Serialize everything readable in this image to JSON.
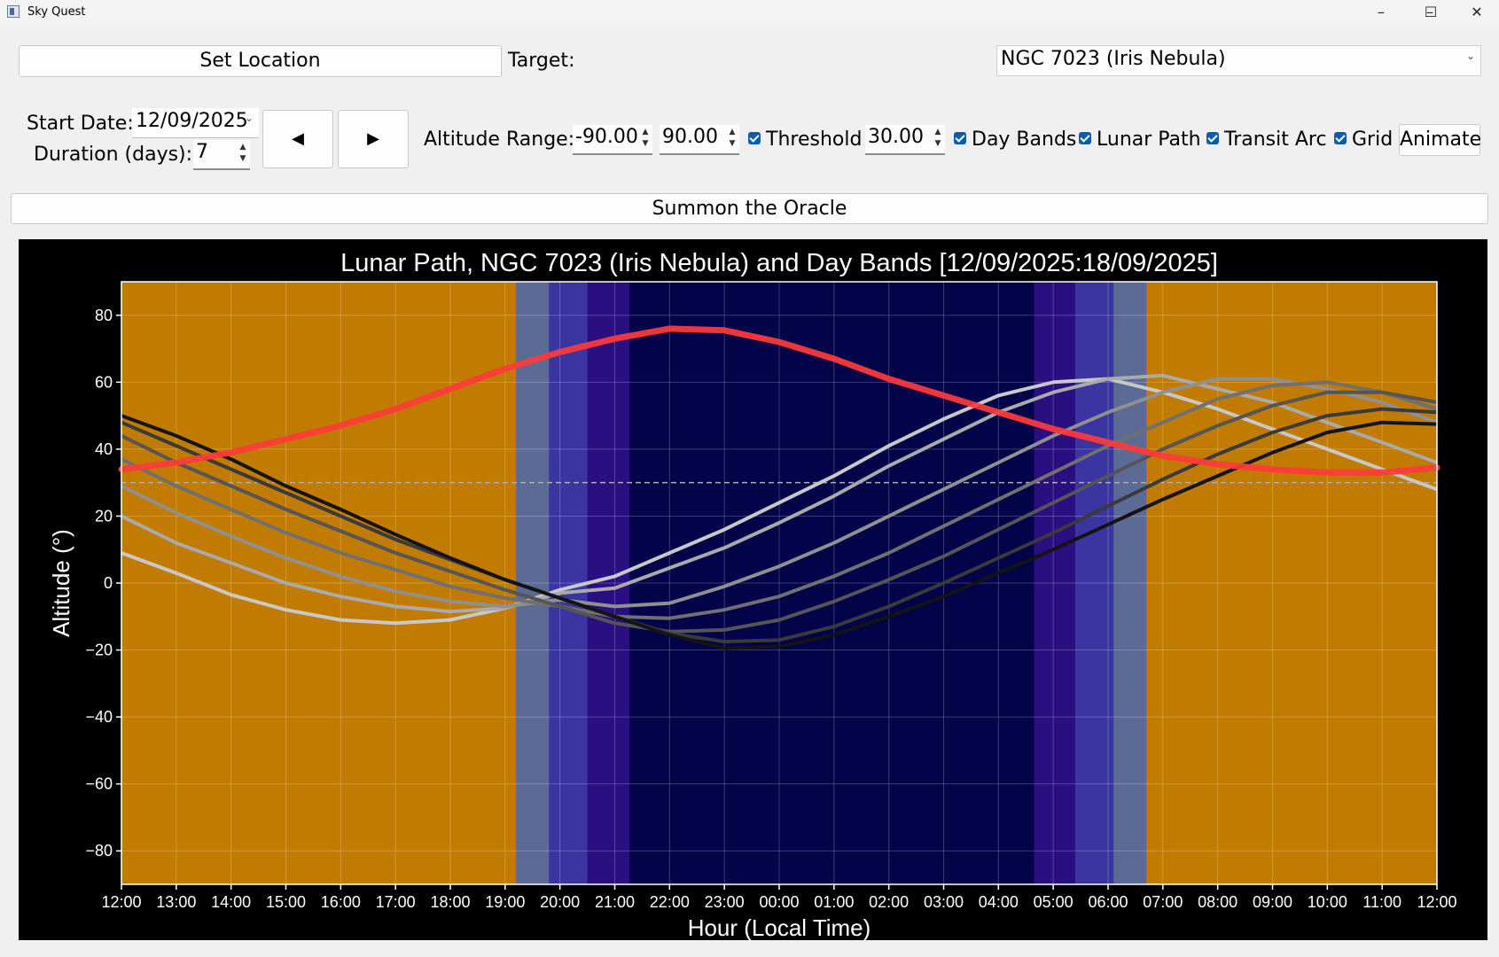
{
  "window": {
    "title": "Sky Quest",
    "minimize": "–",
    "maximize": "☐",
    "close": "✕"
  },
  "controls": {
    "set_location": "Set Location",
    "target_label": "Target:",
    "target_value": "NGC 7023 (Iris Nebula)",
    "start_date_label": "Start Date:",
    "start_date_value": "12/09/2025",
    "duration_label": "Duration (days):",
    "duration_value": "7",
    "prev": "◀",
    "next": "▶",
    "altitude_range_label": "Altitude Range:",
    "alt_min": "-90.00",
    "alt_max": "90.00",
    "threshold_label": "Threshold",
    "threshold_value": "30.00",
    "day_bands_label": "Day Bands",
    "lunar_path_label": "Lunar Path",
    "transit_arc_label": "Transit Arc",
    "grid_label": "Grid",
    "animate": "Animate",
    "summon": "Summon the Oracle"
  },
  "chart_data": {
    "type": "line",
    "title": "Lunar Path, NGC 7023 (Iris Nebula) and Day Bands [12/09/2025:18/09/2025]",
    "xlabel": "Hour (Local Time)",
    "ylabel": "Altitude (°)",
    "x_tick_labels": [
      "12:00",
      "13:00",
      "14:00",
      "15:00",
      "16:00",
      "17:00",
      "18:00",
      "19:00",
      "20:00",
      "21:00",
      "22:00",
      "23:00",
      "00:00",
      "01:00",
      "02:00",
      "03:00",
      "04:00",
      "05:00",
      "06:00",
      "07:00",
      "08:00",
      "09:00",
      "10:00",
      "11:00",
      "12:00"
    ],
    "y_ticks": [
      -80,
      -60,
      -40,
      -20,
      0,
      20,
      40,
      60,
      80
    ],
    "ylim": [
      -90,
      90
    ],
    "xlim": [
      0,
      24
    ],
    "grid": true,
    "threshold": 30,
    "colors": {
      "day": "#c07b00",
      "civil": "#5b6b96",
      "nautical": "#3a35a0",
      "astronomical": "#2a0f80",
      "night": "#03034a",
      "lunar": "#ff3b3b"
    },
    "day_bands": [
      {
        "type": "day",
        "from": 0,
        "to": 7.2
      },
      {
        "type": "civil",
        "from": 7.2,
        "to": 7.8
      },
      {
        "type": "nautical",
        "from": 7.8,
        "to": 8.5
      },
      {
        "type": "astronomical",
        "from": 8.5,
        "to": 9.27
      },
      {
        "type": "night",
        "from": 9.27,
        "to": 16.65
      },
      {
        "type": "astronomical",
        "from": 16.65,
        "to": 17.4
      },
      {
        "type": "nautical",
        "from": 17.4,
        "to": 18.1
      },
      {
        "type": "civil",
        "from": 18.1,
        "to": 18.7
      },
      {
        "type": "day",
        "from": 18.7,
        "to": 24
      }
    ],
    "lunar_path": {
      "x": [
        0,
        1,
        2,
        3,
        4,
        5,
        6,
        7,
        8,
        9,
        10,
        11,
        12,
        13,
        14,
        15,
        16,
        17,
        18,
        19,
        20,
        21,
        22,
        23,
        24
      ],
      "y": [
        34,
        36,
        39,
        43,
        47,
        52,
        58,
        64,
        69,
        73,
        76,
        75.5,
        72,
        67,
        61,
        56,
        51,
        46,
        42,
        38,
        35.5,
        34,
        33,
        33,
        34.5
      ]
    },
    "series": [
      {
        "color": "#c8c8c8",
        "x": [
          0,
          1,
          2,
          3,
          4,
          5,
          6,
          7,
          8,
          9,
          10,
          11,
          12,
          13,
          14,
          15,
          16,
          17,
          18,
          19,
          20,
          21,
          22,
          23,
          24
        ],
        "y": [
          9,
          3,
          -3.5,
          -8,
          -11,
          -12,
          -11,
          -7.5,
          -2,
          2,
          9,
          16,
          24,
          32,
          41,
          49,
          56,
          60,
          61,
          57,
          52,
          46,
          40,
          34,
          28
        ]
      },
      {
        "color": "#aaaaaa",
        "x": [
          0,
          1,
          2,
          3,
          4,
          5,
          6,
          7,
          8,
          9,
          10,
          11,
          12,
          13,
          14,
          15,
          16,
          17,
          18,
          19,
          20,
          21,
          22,
          23,
          24
        ],
        "y": [
          20,
          12,
          6,
          0,
          -4,
          -7,
          -8.5,
          -7.5,
          -3,
          -1.5,
          4.5,
          10.5,
          18,
          26,
          35,
          43,
          51,
          57,
          61,
          62,
          58,
          54,
          48,
          42,
          36
        ]
      },
      {
        "color": "#909090",
        "x": [
          0,
          1,
          2,
          3,
          4,
          5,
          6,
          7,
          8,
          9,
          10,
          11,
          12,
          13,
          14,
          15,
          16,
          17,
          18,
          19,
          20,
          21,
          22,
          23,
          24
        ],
        "y": [
          29,
          21,
          14,
          7.5,
          2,
          -2.5,
          -5.5,
          -7,
          -5,
          -7,
          -6,
          -1,
          5,
          12,
          20,
          28,
          36,
          44,
          51,
          57,
          61,
          61,
          58,
          54,
          48
        ]
      },
      {
        "color": "#707070",
        "x": [
          0,
          1,
          2,
          3,
          4,
          5,
          6,
          7,
          8,
          9,
          10,
          11,
          12,
          13,
          14,
          15,
          16,
          17,
          18,
          19,
          20,
          21,
          22,
          23,
          24
        ],
        "y": [
          37,
          29,
          22,
          15,
          9,
          4,
          -1,
          -4.5,
          -7,
          -10,
          -10.5,
          -8,
          -4,
          2,
          9,
          17,
          25,
          33,
          41,
          48,
          55,
          59,
          60,
          57,
          52
        ]
      },
      {
        "color": "#555555",
        "x": [
          0,
          1,
          2,
          3,
          4,
          5,
          6,
          7,
          8,
          9,
          10,
          11,
          12,
          13,
          14,
          15,
          16,
          17,
          18,
          19,
          20,
          21,
          22,
          23,
          24
        ],
        "y": [
          44,
          36,
          29,
          22,
          15.5,
          9,
          3.5,
          -2,
          -7,
          -12,
          -14.5,
          -14,
          -11,
          -5.5,
          1,
          8,
          16,
          24,
          32,
          40,
          47,
          53,
          57,
          57,
          54
        ]
      },
      {
        "color": "#3a3a3a",
        "x": [
          0,
          1,
          2,
          3,
          4,
          5,
          6,
          7,
          8,
          9,
          10,
          11,
          12,
          13,
          14,
          15,
          16,
          17,
          18,
          19,
          20,
          21,
          22,
          23,
          24
        ],
        "y": [
          48,
          41,
          34,
          27,
          20,
          13,
          7,
          1,
          -4.5,
          -10,
          -15,
          -17.5,
          -17,
          -13,
          -7,
          0,
          7.5,
          15,
          23,
          31,
          38.5,
          45,
          50,
          52,
          51
        ]
      },
      {
        "color": "#141414",
        "x": [
          0,
          1,
          2,
          3,
          4,
          5,
          6,
          7,
          8,
          9,
          10,
          11,
          12,
          13,
          14,
          15,
          16,
          17,
          18,
          19,
          20,
          21,
          22,
          23,
          24
        ],
        "y": [
          50,
          44,
          37,
          29,
          22,
          14.5,
          7.5,
          1,
          -4.5,
          -10,
          -15.5,
          -19.5,
          -19,
          -15.5,
          -10,
          -4,
          3,
          10,
          17.5,
          25,
          32,
          39,
          45,
          48,
          47.5
        ]
      }
    ]
  }
}
